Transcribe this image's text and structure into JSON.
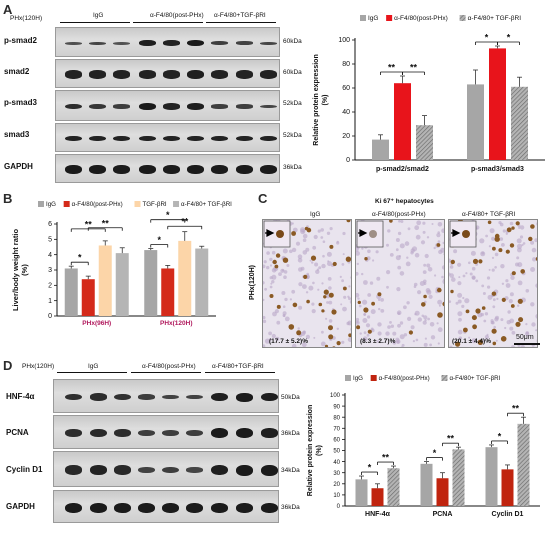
{
  "panel_A": {
    "letter": "A",
    "condition": "PHx(120H)",
    "groups": [
      "IgG",
      "α-F4/80(post-PHx)",
      "α-F4/80+TGF-βRI"
    ],
    "rows": [
      {
        "label": "p-smad2",
        "kda": "60kDa"
      },
      {
        "label": "smad2",
        "kda": "60kDa"
      },
      {
        "label": "p-smad3",
        "kda": "52kDa"
      },
      {
        "label": "smad3",
        "kda": "52kDa"
      },
      {
        "label": "GAPDH",
        "kda": "36kDa"
      }
    ]
  },
  "panel_B": {
    "letter": "B"
  },
  "panel_C": {
    "letter": "C",
    "title": "Ki 67⁺ hepatocytes",
    "side_label": "PHx(120H)",
    "groups": [
      "IgG",
      "α-F4/80(post-PHx)",
      "α-F4/80+ TGF-βRI"
    ],
    "percents": [
      "(17.7 ± 5.2)%",
      "(8.3 ± 2.7)%",
      "(20.1 ± 4.4)%"
    ],
    "scale": "50μm"
  },
  "panel_D": {
    "letter": "D",
    "condition": "PHx(120H)",
    "groups": [
      "IgG",
      "α-F4/80(post-PHx)",
      "α-F4/80+TGF-βRI"
    ],
    "rows": [
      {
        "label": "HNF-4α",
        "kda": "50kDa"
      },
      {
        "label": "PCNA",
        "kda": "36kDa"
      },
      {
        "label": "Cyclin D1",
        "kda": "34kDa"
      },
      {
        "label": "GAPDH",
        "kda": "36kDa"
      }
    ]
  },
  "chart_data": [
    {
      "panel": "A",
      "type": "bar",
      "categories": [
        "p-smad2/smad2",
        "p-smad3/smad3"
      ],
      "series": [
        {
          "name": "IgG",
          "values": [
            17,
            63
          ],
          "errors": [
            4,
            12
          ],
          "color": "#a6a6a6"
        },
        {
          "name": "α-F4/80(post-PHx)",
          "values": [
            64,
            93
          ],
          "errors": [
            6,
            2
          ],
          "color": "#e8141b"
        },
        {
          "name": "α-F4/80+ TGF-βRI",
          "values": [
            29,
            61
          ],
          "errors": [
            8,
            8
          ],
          "color": "#8f8f8f",
          "pattern": "hatch"
        }
      ],
      "ylabel": "Relative protein expression (%)",
      "ylim": [
        0,
        100
      ],
      "yticks": [
        0,
        20,
        40,
        60,
        80,
        100
      ],
      "significance": [
        {
          "category": "p-smad2/smad2",
          "pair": [
            "IgG",
            "α-F4/80(post-PHx)"
          ],
          "label": "**"
        },
        {
          "category": "p-smad2/smad2",
          "pair": [
            "α-F4/80(post-PHx)",
            "α-F4/80+ TGF-βRI"
          ],
          "label": "**"
        },
        {
          "category": "p-smad3/smad3",
          "pair": [
            "IgG",
            "α-F4/80(post-PHx)"
          ],
          "label": "*"
        },
        {
          "category": "p-smad3/smad3",
          "pair": [
            "α-F4/80(post-PHx)",
            "α-F4/80+ TGF-βRI"
          ],
          "label": "*"
        }
      ],
      "legend_position": "top"
    },
    {
      "panel": "B",
      "type": "bar",
      "categories": [
        "PHx(96H)",
        "PHx(120H)"
      ],
      "series": [
        {
          "name": "IgG",
          "values": [
            3.1,
            4.3
          ],
          "errors": [
            0.15,
            0.1
          ],
          "color": "#a6a6a6"
        },
        {
          "name": "α-F4/80(post-PHx)",
          "values": [
            2.4,
            3.1
          ],
          "errors": [
            0.2,
            0.2
          ],
          "color": "#d42a1a"
        },
        {
          "name": "TGF-βRI",
          "values": [
            4.6,
            4.9
          ],
          "errors": [
            0.3,
            0.6
          ],
          "color": "#fcd5a8"
        },
        {
          "name": "α-F4/80+ TGF-βRI",
          "values": [
            4.1,
            4.4
          ],
          "errors": [
            0.35,
            0.15
          ],
          "color": "#b5b5b5"
        }
      ],
      "ylabel": "Liver/body weight ratio (%)",
      "ylim": [
        0,
        6
      ],
      "yticks": [
        0,
        1,
        2,
        3,
        4,
        5,
        6
      ],
      "significance": [
        {
          "category": "PHx(96H)",
          "pair": [
            "IgG",
            "α-F4/80(post-PHx)"
          ],
          "label": "*"
        },
        {
          "category": "PHx(96H)",
          "pair": [
            "IgG",
            "TGF-βRI"
          ],
          "label": "**"
        },
        {
          "category": "PHx(96H)",
          "pair": [
            "α-F4/80(post-PHx)",
            "α-F4/80+ TGF-βRI"
          ],
          "label": "**"
        },
        {
          "category": "PHx(120H)",
          "pair": [
            "IgG",
            "α-F4/80(post-PHx)"
          ],
          "label": "*"
        },
        {
          "category": "PHx(120H)",
          "pair": [
            "IgG",
            "TGF-βRI"
          ],
          "label": "*"
        },
        {
          "category": "PHx(120H)",
          "pair": [
            "α-F4/80(post-PHx)",
            "α-F4/80+ TGF-βRI"
          ],
          "label": "**"
        }
      ],
      "legend_position": "top"
    },
    {
      "panel": "D",
      "type": "bar",
      "categories": [
        "HNF-4α",
        "PCNA",
        "Cyclin D1"
      ],
      "series": [
        {
          "name": "IgG",
          "values": [
            24,
            38,
            53
          ],
          "errors": [
            3,
            2,
            2
          ],
          "color": "#a6a6a6"
        },
        {
          "name": "α-F4/80(post-PHx)",
          "values": [
            16,
            25,
            33
          ],
          "errors": [
            4,
            5,
            4
          ],
          "color": "#c0240f"
        },
        {
          "name": "α-F4/80+ TGF-βRI",
          "values": [
            34,
            51,
            74
          ],
          "errors": [
            2,
            2,
            6
          ],
          "color": "#8f8f8f",
          "pattern": "hatch"
        }
      ],
      "ylabel": "Relative protein expression (%)",
      "ylim": [
        0,
        100
      ],
      "yticks": [
        0,
        10,
        20,
        30,
        40,
        50,
        60,
        70,
        80,
        90,
        100
      ],
      "significance": [
        {
          "category": "HNF-4α",
          "pair": [
            "IgG",
            "α-F4/80(post-PHx)"
          ],
          "label": "*"
        },
        {
          "category": "HNF-4α",
          "pair": [
            "α-F4/80(post-PHx)",
            "α-F4/80+ TGF-βRI"
          ],
          "label": "**"
        },
        {
          "category": "PCNA",
          "pair": [
            "IgG",
            "α-F4/80(post-PHx)"
          ],
          "label": "*"
        },
        {
          "category": "PCNA",
          "pair": [
            "α-F4/80(post-PHx)",
            "α-F4/80+ TGF-βRI"
          ],
          "label": "**"
        },
        {
          "category": "Cyclin D1",
          "pair": [
            "IgG",
            "α-F4/80(post-PHx)"
          ],
          "label": "*"
        },
        {
          "category": "Cyclin D1",
          "pair": [
            "α-F4/80(post-PHx)",
            "α-F4/80+ TGF-βRI"
          ],
          "label": "**"
        }
      ],
      "legend_position": "top"
    }
  ]
}
